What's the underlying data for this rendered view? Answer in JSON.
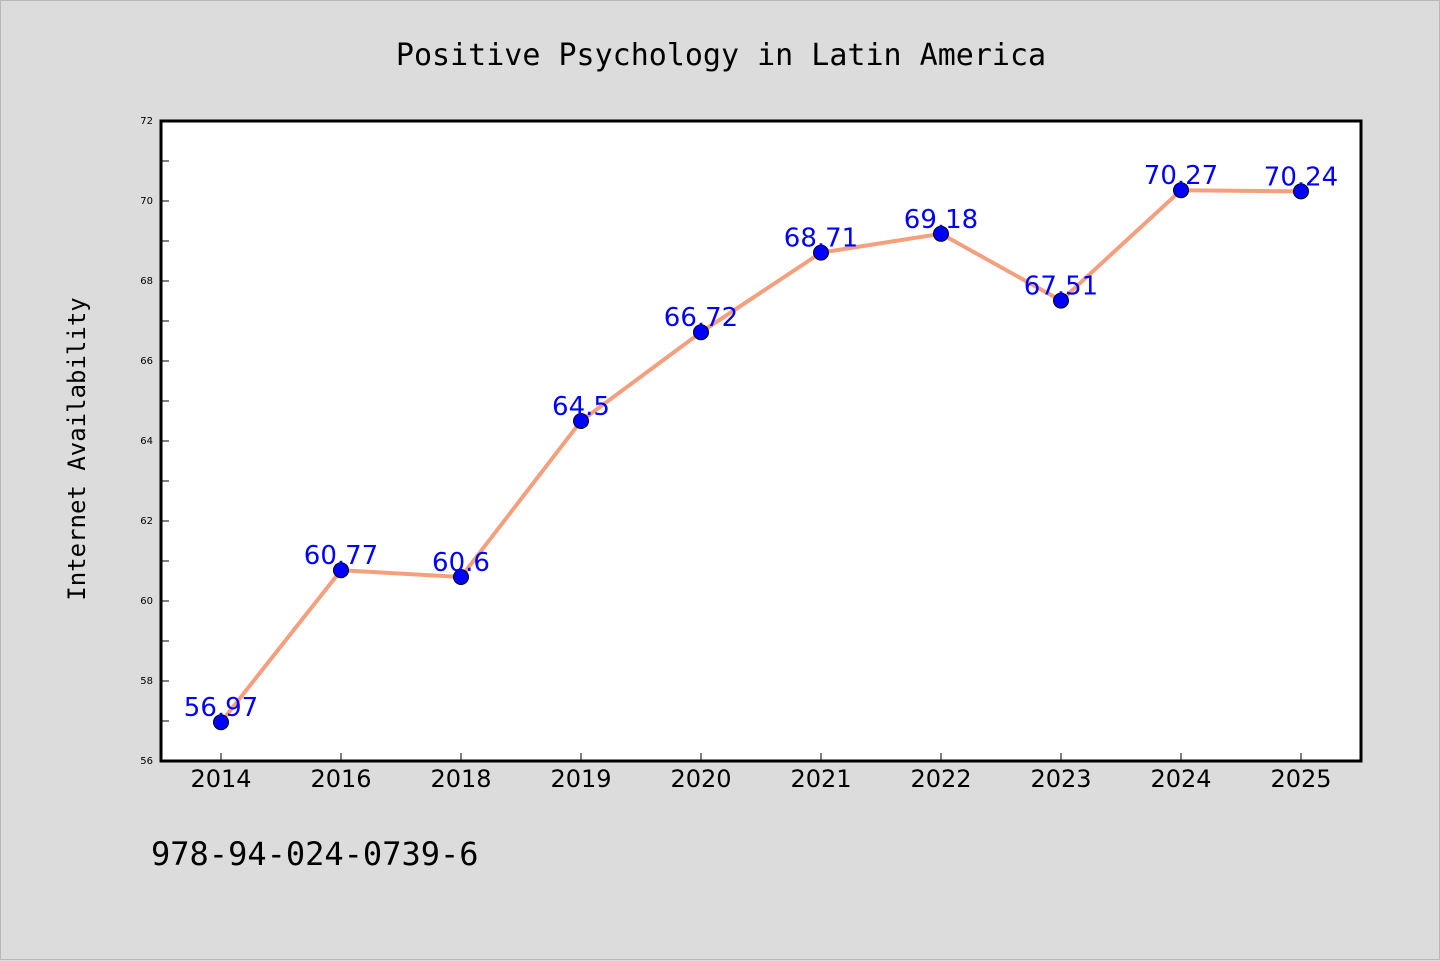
{
  "chart_data": {
    "type": "line",
    "title": "Positive Psychology in Latin America",
    "xlabel": "",
    "ylabel": "Internet Availability",
    "categories": [
      "2014",
      "2016",
      "2018",
      "2019",
      "2020",
      "2021",
      "2022",
      "2023",
      "2024",
      "2025"
    ],
    "series": [
      {
        "values": [
          56.97,
          60.77,
          60.6,
          64.5,
          66.72,
          68.71,
          69.18,
          67.51,
          70.27,
          70.24
        ],
        "line_color": "#f4a07f",
        "marker_color": "#0000ff"
      }
    ],
    "data_labels": [
      "56.97",
      "60.77",
      "60.6",
      "64.5",
      "66.72",
      "68.71",
      "69.18",
      "67.51",
      "70.27",
      "70.24"
    ],
    "ylim": [
      56,
      72
    ],
    "y_major_ticks": [
      "56",
      "58",
      "60",
      "62",
      "64",
      "66",
      "68",
      "70",
      "72"
    ],
    "grid": false,
    "legend": "none",
    "colors": {
      "background": "#dcdcdc",
      "plot_background": "#ffffff",
      "label_color": "#0000ff"
    }
  },
  "footer": {
    "code": "978-94-024-0739-6"
  }
}
